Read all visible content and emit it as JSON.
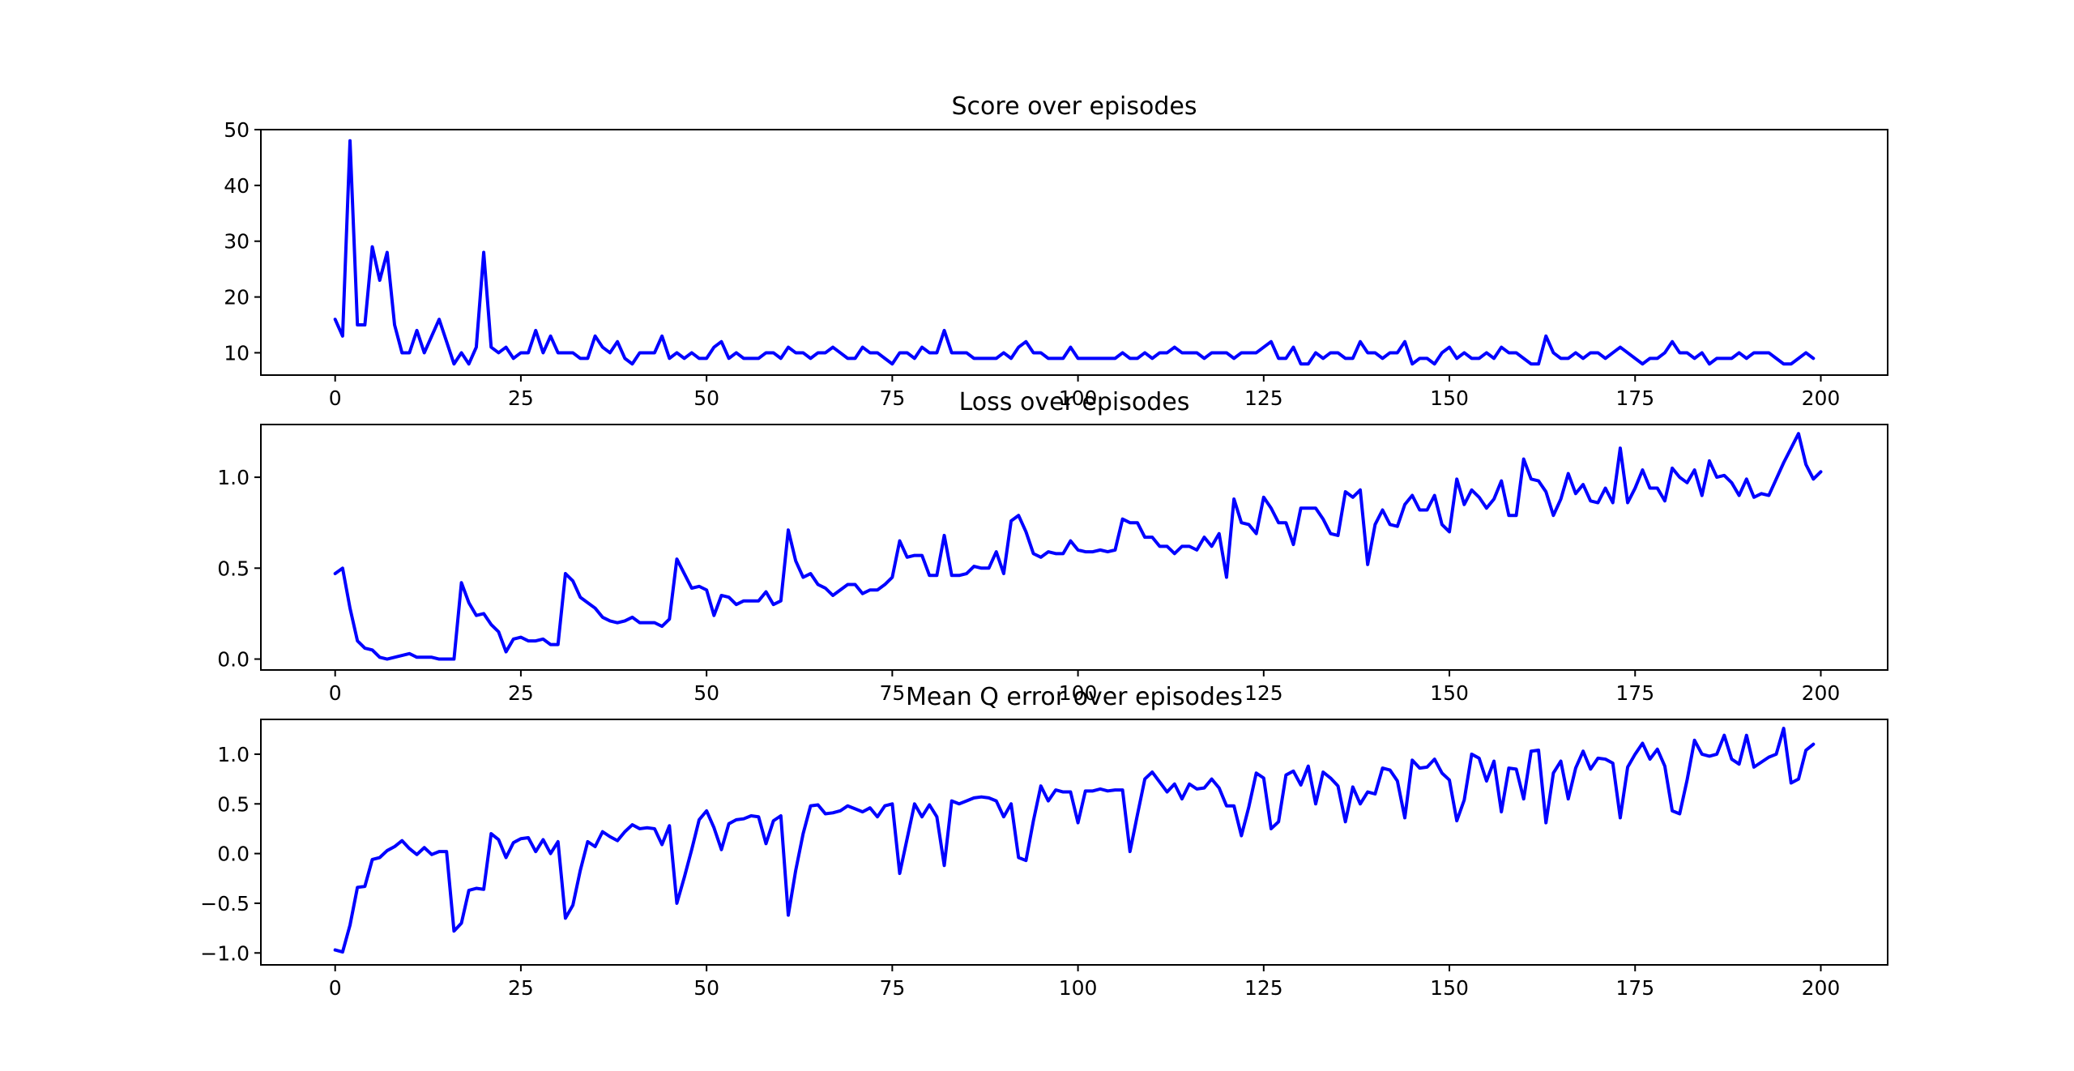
{
  "figure": {
    "line_color": "#0000ff"
  },
  "chart_data": [
    {
      "type": "line",
      "title": "Score over episodes",
      "xlabel": "",
      "ylabel": "",
      "xlim": [
        -10,
        209
      ],
      "ylim": [
        6,
        50
      ],
      "xticks": [
        0,
        25,
        50,
        75,
        100,
        125,
        150,
        175,
        200
      ],
      "yticks": [
        10,
        20,
        30,
        40,
        50
      ],
      "ytick_labels": [
        "10",
        "20",
        "30",
        "40",
        "50"
      ],
      "grid": false,
      "series": [
        {
          "values": [
            16,
            13,
            48,
            15,
            15,
            29,
            23,
            28,
            15,
            10,
            10,
            14,
            10,
            13,
            16,
            12,
            8,
            10,
            8,
            11,
            28,
            11,
            10,
            11,
            9,
            10,
            10,
            14,
            10,
            13,
            10,
            10,
            10,
            9,
            9,
            13,
            11,
            10,
            12,
            9,
            8,
            10,
            10,
            10,
            13,
            9,
            10,
            9,
            10,
            9,
            9,
            11,
            12,
            9,
            10,
            9,
            9,
            9,
            10,
            10,
            9,
            11,
            10,
            10,
            9,
            10,
            10,
            11,
            10,
            9,
            9,
            11,
            10,
            10,
            9,
            8,
            10,
            10,
            9,
            11,
            10,
            10,
            14,
            10,
            10,
            10,
            9,
            9,
            9,
            9,
            10,
            9,
            11,
            12,
            10,
            10,
            9,
            9,
            9,
            11,
            9,
            9,
            9,
            9,
            9,
            9,
            10,
            9,
            9,
            10,
            9,
            10,
            10,
            11,
            10,
            10,
            10,
            9,
            10,
            10,
            10,
            9,
            10,
            10,
            10,
            11,
            12,
            9,
            9,
            11,
            8,
            8,
            10,
            9,
            10,
            10,
            9,
            9,
            12,
            10,
            10,
            9,
            10,
            10,
            12,
            8,
            9,
            9,
            8,
            10,
            11,
            9,
            10,
            9,
            9,
            10,
            9,
            11,
            10,
            10,
            9,
            8,
            8,
            13,
            10,
            9,
            9,
            10,
            9,
            10,
            10,
            9,
            10,
            11,
            10,
            9,
            8,
            9,
            9,
            10,
            12,
            10,
            10,
            9,
            10,
            8,
            9,
            9,
            9,
            10,
            9,
            10,
            10,
            10,
            9,
            8,
            8,
            9,
            10,
            9
          ]
        }
      ]
    },
    {
      "type": "line",
      "title": "Loss over episodes",
      "xlabel": "",
      "ylabel": "",
      "xlim": [
        -10,
        209
      ],
      "ylim": [
        -0.06,
        1.29
      ],
      "xticks": [
        0,
        25,
        50,
        75,
        100,
        125,
        150,
        175,
        200
      ],
      "yticks": [
        0.0,
        0.5,
        1.0
      ],
      "ytick_labels": [
        "0.0",
        "0.5",
        "1.0"
      ],
      "grid": false,
      "series": [
        {
          "values": [
            0.47,
            0.5,
            0.28,
            0.1,
            0.06,
            0.05,
            0.01,
            0.0,
            0.01,
            0.02,
            0.03,
            0.01,
            0.01,
            0.01,
            0.0,
            0.0,
            0.0,
            0.42,
            0.31,
            0.24,
            0.25,
            0.19,
            0.15,
            0.04,
            0.11,
            0.12,
            0.1,
            0.1,
            0.11,
            0.08,
            0.08,
            0.47,
            0.43,
            0.34,
            0.31,
            0.28,
            0.23,
            0.21,
            0.2,
            0.21,
            0.23,
            0.2,
            0.2,
            0.2,
            0.18,
            0.22,
            0.55,
            0.47,
            0.39,
            0.4,
            0.38,
            0.24,
            0.35,
            0.34,
            0.3,
            0.32,
            0.32,
            0.32,
            0.37,
            0.3,
            0.32,
            0.71,
            0.54,
            0.45,
            0.47,
            0.41,
            0.39,
            0.35,
            0.38,
            0.41,
            0.41,
            0.36,
            0.38,
            0.38,
            0.41,
            0.45,
            0.65,
            0.56,
            0.57,
            0.57,
            0.46,
            0.46,
            0.68,
            0.46,
            0.46,
            0.47,
            0.51,
            0.5,
            0.5,
            0.59,
            0.47,
            0.76,
            0.79,
            0.7,
            0.58,
            0.56,
            0.59,
            0.58,
            0.58,
            0.65,
            0.6,
            0.59,
            0.59,
            0.6,
            0.59,
            0.6,
            0.77,
            0.75,
            0.75,
            0.67,
            0.67,
            0.62,
            0.62,
            0.58,
            0.62,
            0.62,
            0.6,
            0.67,
            0.62,
            0.69,
            0.45,
            0.88,
            0.75,
            0.74,
            0.69,
            0.89,
            0.83,
            0.75,
            0.75,
            0.63,
            0.83,
            0.83,
            0.83,
            0.77,
            0.69,
            0.68,
            0.92,
            0.89,
            0.93,
            0.52,
            0.74,
            0.82,
            0.74,
            0.73,
            0.85,
            0.9,
            0.82,
            0.82,
            0.9,
            0.74,
            0.7,
            0.99,
            0.85,
            0.93,
            0.89,
            0.83,
            0.88,
            0.98,
            0.79,
            0.79,
            1.1,
            0.99,
            0.98,
            0.92,
            0.79,
            0.88,
            1.02,
            0.91,
            0.96,
            0.87,
            0.86,
            0.94,
            0.86,
            1.16,
            0.86,
            0.94,
            1.04,
            0.94,
            0.94,
            0.87,
            1.05,
            1.0,
            0.97,
            1.04,
            0.9,
            1.09,
            1.0,
            1.01,
            0.97,
            0.9,
            0.99,
            0.89,
            0.91,
            0.9,
            0.99,
            1.08,
            1.16,
            1.24,
            1.07,
            0.99,
            1.03
          ]
        }
      ]
    },
    {
      "type": "line",
      "title": "Mean Q error over episodes",
      "xlabel": "",
      "ylabel": "",
      "xlim": [
        -10,
        209
      ],
      "ylim": [
        -1.12,
        1.35
      ],
      "xticks": [
        0,
        25,
        50,
        75,
        100,
        125,
        150,
        175,
        200
      ],
      "yticks": [
        -1.0,
        -0.5,
        0.0,
        0.5,
        1.0
      ],
      "ytick_labels": [
        "−1.0",
        "−0.5",
        "0.0",
        "0.5",
        "1.0"
      ],
      "grid": false,
      "series": [
        {
          "values": [
            -0.97,
            -0.99,
            -0.72,
            -0.34,
            -0.33,
            -0.06,
            -0.04,
            0.03,
            0.07,
            0.13,
            0.05,
            -0.01,
            0.06,
            -0.01,
            0.02,
            0.02,
            -0.78,
            -0.7,
            -0.37,
            -0.35,
            -0.36,
            0.2,
            0.14,
            -0.04,
            0.11,
            0.15,
            0.16,
            0.02,
            0.14,
            0.0,
            0.12,
            -0.65,
            -0.52,
            -0.17,
            0.12,
            0.07,
            0.22,
            0.17,
            0.13,
            0.22,
            0.29,
            0.25,
            0.26,
            0.25,
            0.09,
            0.28,
            -0.5,
            -0.24,
            0.04,
            0.34,
            0.43,
            0.26,
            0.04,
            0.3,
            0.34,
            0.35,
            0.38,
            0.37,
            0.1,
            0.33,
            0.38,
            -0.62,
            -0.17,
            0.2,
            0.48,
            0.49,
            0.4,
            0.41,
            0.43,
            0.48,
            0.45,
            0.42,
            0.46,
            0.37,
            0.48,
            0.5,
            -0.2,
            0.15,
            0.5,
            0.37,
            0.49,
            0.37,
            -0.12,
            0.53,
            0.5,
            0.53,
            0.56,
            0.57,
            0.56,
            0.53,
            0.37,
            0.5,
            -0.04,
            -0.07,
            0.33,
            0.68,
            0.53,
            0.64,
            0.62,
            0.62,
            0.31,
            0.63,
            0.63,
            0.65,
            0.63,
            0.64,
            0.64,
            0.02,
            0.39,
            0.75,
            0.82,
            0.72,
            0.62,
            0.7,
            0.55,
            0.7,
            0.65,
            0.66,
            0.75,
            0.66,
            0.48,
            0.48,
            0.18,
            0.47,
            0.81,
            0.76,
            0.25,
            0.32,
            0.79,
            0.83,
            0.69,
            0.88,
            0.5,
            0.82,
            0.76,
            0.68,
            0.32,
            0.67,
            0.5,
            0.62,
            0.6,
            0.86,
            0.84,
            0.73,
            0.36,
            0.94,
            0.86,
            0.87,
            0.95,
            0.81,
            0.74,
            0.33,
            0.54,
            1.0,
            0.96,
            0.73,
            0.93,
            0.42,
            0.86,
            0.85,
            0.55,
            1.03,
            1.04,
            0.31,
            0.81,
            0.93,
            0.55,
            0.86,
            1.03,
            0.85,
            0.96,
            0.95,
            0.91,
            0.36,
            0.87,
            1.0,
            1.11,
            0.95,
            1.05,
            0.88,
            0.43,
            0.4,
            0.74,
            1.14,
            1.0,
            0.98,
            1.0,
            1.19,
            0.95,
            0.9,
            1.19,
            0.87,
            0.92,
            0.97,
            1.0,
            1.26,
            0.71,
            0.75,
            1.04,
            1.1
          ]
        }
      ]
    }
  ]
}
